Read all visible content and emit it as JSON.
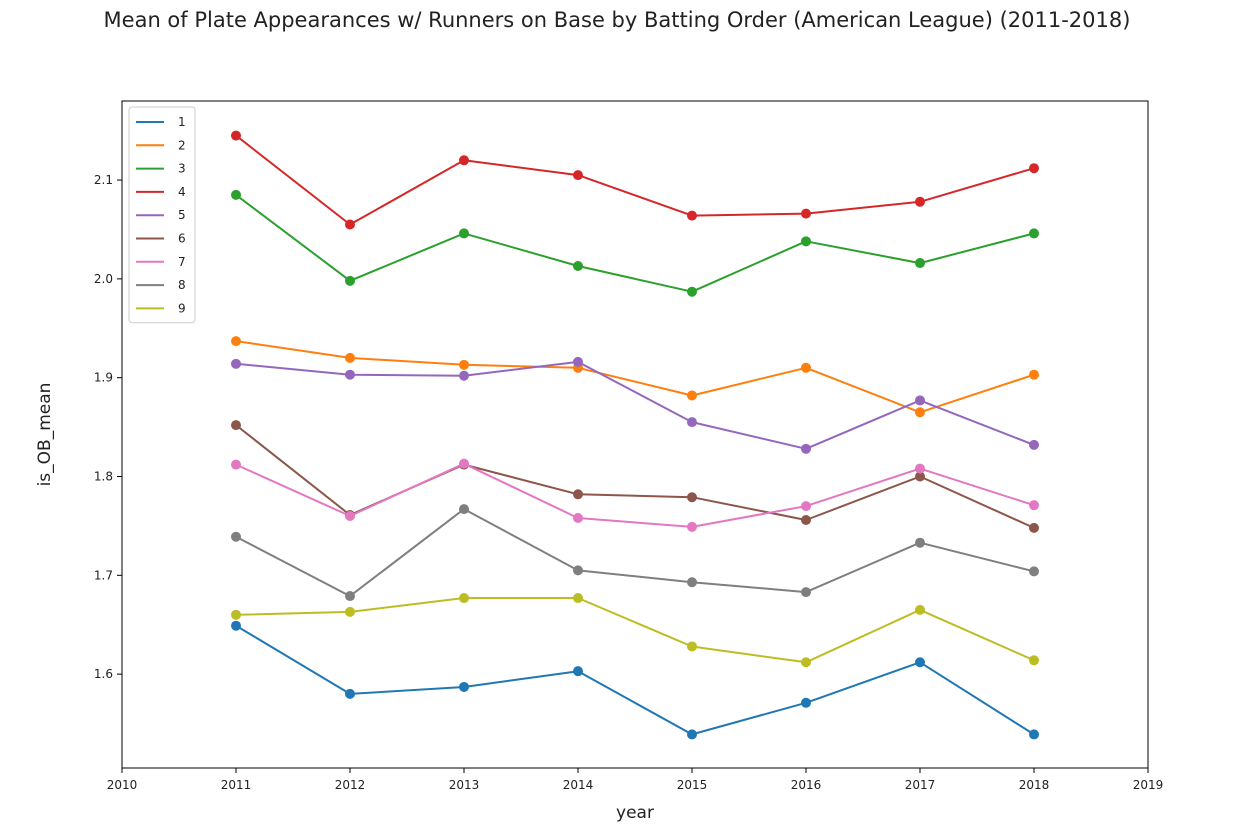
{
  "chart_data": {
    "type": "line",
    "title": "Mean of Plate Appearances w/ Runners on Base by Batting Order (American League) (2011-2018)",
    "xlabel": "year",
    "ylabel": "is_OB_mean",
    "xlim": [
      2010,
      2019
    ],
    "ylim": [
      1.505,
      2.18
    ],
    "x_ticks": [
      "2010",
      "2011",
      "2012",
      "2013",
      "2014",
      "2015",
      "2016",
      "2017",
      "2018",
      "2019"
    ],
    "y_ticks": [
      "1.6",
      "1.7",
      "1.8",
      "1.9",
      "2.0",
      "2.1"
    ],
    "grid": false,
    "legend_position": "top-left",
    "markers": "circle",
    "x": [
      2011,
      2012,
      2013,
      2014,
      2015,
      2016,
      2017,
      2018
    ],
    "series": [
      {
        "name": "1",
        "color": "#1f77b4",
        "values": [
          1.649,
          1.58,
          1.587,
          1.603,
          1.539,
          1.571,
          1.612,
          1.539
        ]
      },
      {
        "name": "2",
        "color": "#ff7f0e",
        "values": [
          1.937,
          1.92,
          1.913,
          1.91,
          1.882,
          1.91,
          1.865,
          1.903
        ]
      },
      {
        "name": "3",
        "color": "#2ca02c",
        "values": [
          2.085,
          1.998,
          2.046,
          2.013,
          1.987,
          2.038,
          2.016,
          2.046
        ]
      },
      {
        "name": "4",
        "color": "#d62728",
        "values": [
          2.145,
          2.055,
          2.12,
          2.105,
          2.064,
          2.066,
          2.078,
          2.112
        ]
      },
      {
        "name": "5",
        "color": "#9467bd",
        "values": [
          1.914,
          1.903,
          1.902,
          1.916,
          1.855,
          1.828,
          1.877,
          1.832
        ]
      },
      {
        "name": "6",
        "color": "#8c564b",
        "values": [
          1.852,
          1.761,
          1.812,
          1.782,
          1.779,
          1.756,
          1.8,
          1.748
        ]
      },
      {
        "name": "7",
        "color": "#e377c2",
        "values": [
          1.812,
          1.76,
          1.813,
          1.758,
          1.749,
          1.77,
          1.808,
          1.771
        ]
      },
      {
        "name": "8",
        "color": "#7f7f7f",
        "values": [
          1.739,
          1.679,
          1.767,
          1.705,
          1.693,
          1.683,
          1.733,
          1.704
        ]
      },
      {
        "name": "9",
        "color": "#bcbd22",
        "values": [
          1.66,
          1.663,
          1.677,
          1.677,
          1.628,
          1.612,
          1.665,
          1.614
        ]
      }
    ]
  }
}
